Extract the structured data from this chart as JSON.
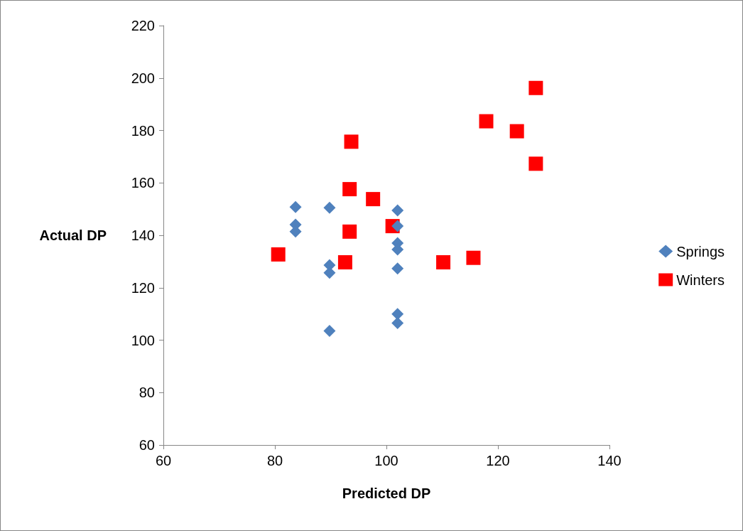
{
  "chart_data": {
    "type": "scatter",
    "xlabel": "Predicted DP",
    "ylabel": "Actual DP",
    "xlim": [
      60,
      140
    ],
    "xticks": [
      60,
      80,
      100,
      120,
      140
    ],
    "ylim": [
      60,
      220
    ],
    "yticks": [
      60,
      80,
      100,
      120,
      140,
      160,
      180,
      200,
      220
    ],
    "grid": false,
    "legend": "right",
    "series": [
      {
        "name": "Springs",
        "color": "#4f81bd",
        "marker": "diamond",
        "x": [
          83.7,
          83.7,
          83.7,
          89.8,
          89.8,
          89.8,
          89.8,
          102.0,
          102.0,
          102.0,
          102.0,
          102.0,
          102.0,
          102.0
        ],
        "values": [
          150.8,
          144.1,
          141.4,
          150.5,
          128.6,
          125.7,
          103.5,
          149.5,
          143.5,
          137.0,
          134.6,
          127.3,
          110.0,
          106.5
        ]
      },
      {
        "name": "Winters",
        "color": "#ff0000",
        "marker": "square",
        "x": [
          80.6,
          93.7,
          93.4,
          97.6,
          93.4,
          92.6,
          101.1,
          110.2,
          115.6,
          117.9,
          123.4,
          126.8,
          126.8
        ],
        "values": [
          132.7,
          175.7,
          157.6,
          153.8,
          141.4,
          129.7,
          143.5,
          129.7,
          131.4,
          183.5,
          179.7,
          196.2,
          167.3
        ]
      }
    ]
  }
}
